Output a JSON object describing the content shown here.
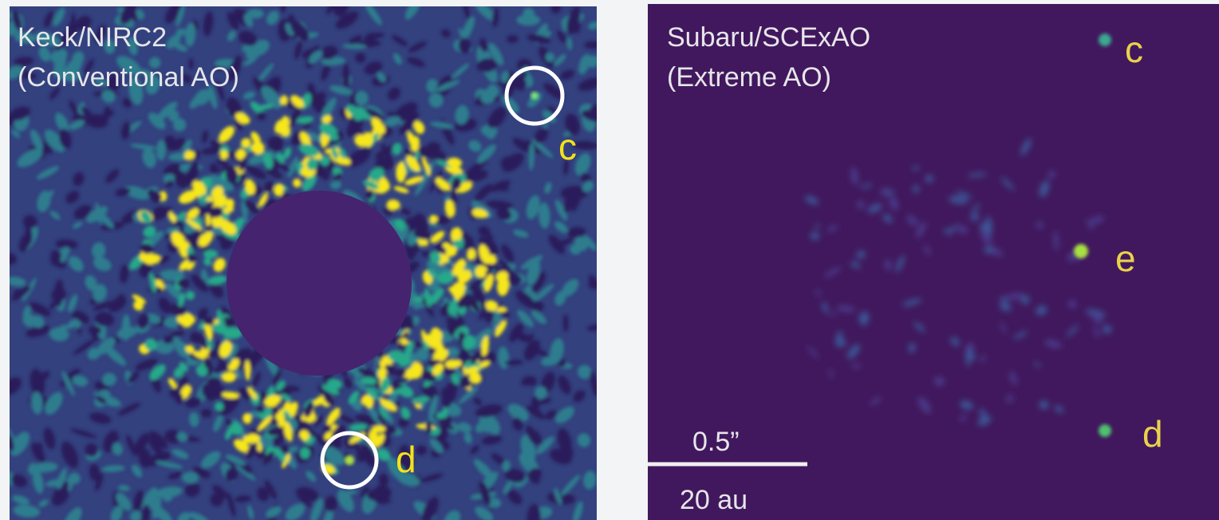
{
  "left_panel": {
    "title_lines": [
      "Keck/NIRC2",
      "(Conventional AO)"
    ],
    "labels": [
      "c",
      "d"
    ]
  },
  "right_panel": {
    "title_lines": [
      "Subaru/SCExAO",
      "(Extreme AO)"
    ],
    "labels": [
      "c",
      "e",
      "d"
    ],
    "scale_bar": {
      "angle": "0.5”",
      "distance": "20 au"
    }
  }
}
